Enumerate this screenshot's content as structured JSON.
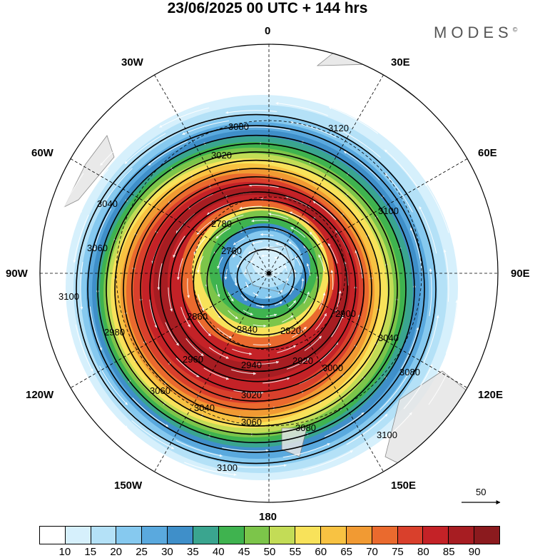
{
  "title": "23/06/2025  00 UTC  + 144 hrs",
  "logo": "MODES",
  "logo_mark": "©",
  "longitude_labels": {
    "n0": "0",
    "n30e": "30E",
    "n60e": "60E",
    "n90e": "90E",
    "n120e": "120E",
    "n150e": "150E",
    "n180": "180",
    "n150w": "150W",
    "n120w": "120W",
    "n90w": "90W",
    "n60w": "60W",
    "n30w": "30W"
  },
  "contour_labels": [
    "2780",
    "2760",
    "2820",
    "2840",
    "2860",
    "2900",
    "2920",
    "2940",
    "2960",
    "3000",
    "3020",
    "3040",
    "3060",
    "3080",
    "3100",
    "3120"
  ],
  "colorbar": {
    "colors": [
      "#ffffff",
      "#d6f0fc",
      "#b4e1f7",
      "#86c9ef",
      "#5aa9de",
      "#3f8fc9",
      "#3aa58f",
      "#3fb34f",
      "#7cc54a",
      "#c3dc56",
      "#f8e25a",
      "#f8c242",
      "#f19a33",
      "#ea6a2e",
      "#d9402c",
      "#c42227",
      "#a71d22",
      "#8b1a1e"
    ],
    "ticks": [
      "10",
      "15",
      "20",
      "25",
      "30",
      "35",
      "40",
      "45",
      "50",
      "55",
      "60",
      "65",
      "70",
      "75",
      "80",
      "85",
      "90"
    ]
  },
  "reference_vector": "50"
}
